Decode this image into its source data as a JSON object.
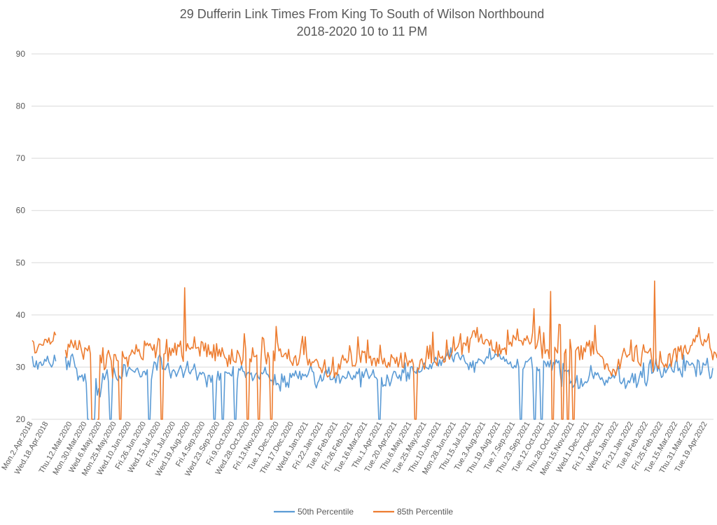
{
  "chart_data": {
    "type": "line",
    "title": "29 Dufferin Link Times From King To South of Wilson Northbound",
    "subtitle": "2018-2020 10 to 11 PM",
    "xlabel": "",
    "ylabel": "",
    "ylim": [
      20,
      90
    ],
    "yticks": [
      "20",
      "30",
      "40",
      "50",
      "60",
      "70",
      "80",
      "90"
    ],
    "grid": true,
    "legend_position": "bottom",
    "x_tick_labels": [
      "Mon.2.Apr.2018",
      "Wed.18.Apr.2018",
      "Thu.12.Mar.2020",
      "Mon.30.Mar.2020",
      "Wed.6.May.2020",
      "Mon.25.May.2020",
      "Wed.10.Jun.2020",
      "Fri.26.Jun.2020",
      "Wed.15.Jul.2020",
      "Fri.31.Jul.2020",
      "Wed.19.Aug.2020",
      "Fri.4.Sep.2020",
      "Wed.23.Sep.2020",
      "Fri.9.Oct.2020",
      "Wed.28.Oct.2020",
      "Fri.13.Nov.2020",
      "Tue.1.Dec.2020",
      "Thu.17.Dec.2020",
      "Wed.6.Jan.2021",
      "Fri.22.Jan.2021",
      "Tue.9.Feb.2021",
      "Fri.26.Feb.2021",
      "Tue.16.Mar.2021",
      "Thu.1.Apr.2021",
      "Tue.20.Apr.2021",
      "Thu.6.May.2021",
      "Tue.25.May.2021",
      "Thu.10.Jun.2021",
      "Mon.28.Jun.2021",
      "Thu.15.Jul.2021",
      "Tue.3.Aug.2021",
      "Thu.19.Aug.2021",
      "Tue.7.Sep.2021",
      "Thu.23.Sep.2021",
      "Tue.12.Oct.2021",
      "Thu.28.Oct.2021",
      "Mon.15.Nov.2021",
      "Wed.1.Dec.2021",
      "Fri.17.Dec.2021",
      "Wed.5.Jan.2022",
      "Fri.21.Jan.2022",
      "Tue.8.Feb.2022",
      "Fri.25.Feb.2022",
      "Tue.15.Mar.2022",
      "Thu.31.Mar.2022",
      "Tue.19.Apr.2022"
    ],
    "series": [
      {
        "name": "50th Percentile",
        "color": "#5b9bd5",
        "values": [
          32.1,
          30.2,
          30.0,
          31.2,
          29.6,
          30.8,
          31.0,
          30.3,
          30.5,
          31.5,
          31.1,
          32.1,
          31.0,
          30.5,
          30.0,
          30.6,
          32.3,
          31.1,
          null,
          null,
          null,
          null,
          null,
          null,
          32.0,
          29.5,
          31.2,
          30.0,
          32.1,
          32.5,
          31.4,
          30.0,
          29.7,
          27.5,
          28.3,
          28.1,
          28.5,
          27.3,
          28.7,
          26.8,
          20.0,
          20.0,
          null,
          null,
          20.0,
          20.0,
          27.8,
          24.6,
          25.9,
          24.3,
          26.3,
          28.8,
          27.6,
          28.4,
          29.5,
          27.2,
          20.0,
          20.0,
          28.0,
          29.8,
          28.5,
          27.7,
          27.4,
          28.3,
          27.8,
          28.2,
          30.5,
          30.4,
          28.2,
          29.3,
          30.0,
          29.6,
          29.4,
          29.2,
          29.0,
          29.6,
          29.8,
          28.9,
          28.1,
          28.2,
          29.1,
          29.2,
          28.5,
          29.5,
          20.0,
          20.0,
          27.6,
          29.4,
          31.0,
          30.8,
          29.4,
          31.8,
          32.4,
          31.7,
          29.6,
          29.7,
          29.5,
          30.2,
          30.8,
          29.2,
          27.9,
          29.2,
          29.5,
          29.1,
          28.2,
          28.9,
          29.6,
          30.3,
          29.5,
          28.0,
          29.0,
          29.8,
          31.1,
          29.1,
          28.7,
          29.4,
          29.6,
          30.6,
          29.3,
          27.5,
          28.3,
          29.0,
          28.6,
          29.0,
          28.8,
          27.8,
          26.2,
          28.4,
          28.4,
          27.1,
          28.4,
          20.0,
          20.0,
          27.3,
          29.2,
          27.5,
          28.8,
          20.0,
          20.0,
          29.1,
          29.0,
          28.8,
          28.9,
          28.5,
          28.3,
          30.1,
          20.0,
          20.0,
          27.5,
          29.7,
          29.4,
          30.3,
          29.2,
          29.1,
          28.0,
          28.8,
          29.0,
          28.6,
          28.9,
          27.4,
          27.9,
          28.6,
          28.9,
          28.1,
          27.7,
          29.0,
          28.7,
          29.0,
          30.0,
          28.7,
          28.6,
          28.0,
          27.4,
          27.5,
          26.6,
          28.6,
          26.6,
          26.9,
          26.6,
          25.4,
          28.7,
          27.1,
          28.3,
          26.2,
          27.1,
          26.1,
          28.8,
          28.0,
          28.8,
          28.3,
          29.3,
          28.4,
          27.8,
          29.2,
          27.6,
          28.7,
          28.3,
          28.6,
          28.1,
          28.6,
          29.5,
          30.4,
          29.2,
          29.0,
          26.8,
          26.0,
          27.0,
          27.5,
          28.5,
          27.3,
          27.6,
          29.0,
          29.5,
          28.8,
          30.0,
          27.6,
          27.6,
          27.7,
          28.5,
          27.0,
          28.4,
          28.6,
          26.9,
          27.7,
          28.3,
          28.1,
          27.8,
          28.0,
          29.2,
          28.6,
          27.9,
          27.6,
          28.4,
          27.9,
          29.1,
          28.7,
          29.7,
          26.2,
          29.1,
          28.0,
          29.0,
          29.7,
          28.7,
          27.8,
          28.3,
          28.6,
          29.5,
          28.1,
          28.0,
          27.6,
          20.0,
          20.0,
          28.0,
          26.3,
          26.6,
          26.4,
          28.5,
          27.6,
          26.4,
          27.3,
          28.5,
          29.2,
          29.1,
          28.2,
          27.8,
          28.5,
          27.4,
          29.5,
          28.9,
          30.8,
          27.3,
          29.0,
          27.7,
          30.0,
          30.1,
          29.2,
          29.1,
          28.8,
          29.9,
          29.0,
          29.1,
          29.3,
          30.3,
          30.8,
          29.9,
          29.8,
          29.6,
          30.5,
          29.7,
          30.7,
          31.0,
          31.9,
          31.4,
          30.2,
          31.4,
          30.3,
          31.3,
          31.3,
          32.0,
          32.2,
          33.3,
          31.5,
          33.7,
          31.7,
          31.0,
          32.3,
          32.6,
          32.8,
          31.9,
          31.4,
          32.1,
          32.3,
          31.2,
          30.7,
          30.6,
          29.5,
          30.9,
          29.9,
          31.2,
          29.0,
          30.9,
          30.8,
          31.6,
          31.4,
          31.3,
          31.0,
          30.6,
          31.5,
          32.0,
          31.7,
          33.6,
          31.4,
          31.7,
          31.8,
          32.5,
          32.4,
          32.0,
          32.5,
          31.6,
          31.5,
          32.0,
          31.1,
          31.5,
          30.7,
          30.6,
          31.0,
          30.0,
          29.8,
          30.3,
          29.9,
          31.5,
          30.0,
          20.0,
          20.0,
          29.6,
          30.0,
          31.1,
          31.0,
          31.3,
          31.6,
          31.9,
          29.5,
          20.0,
          20.0,
          30.0,
          29.3,
          29.6,
          20.0,
          20.0,
          31.2,
          30.9,
          30.1,
          31.1,
          30.0,
          31.3,
          29.4,
          30.9,
          30.5,
          31.4,
          30.8,
          31.2,
          28.6,
          26.3,
          30.7,
          29.2,
          29.4,
          29.2,
          29.4,
          26.9,
          27.3,
          26.1,
          26.5,
          27.0,
          28.4,
          25.9,
          26.0,
          27.8,
          26.3,
          26.8,
          27.2,
          27.0,
          27.4,
          28.5,
          30.3,
          28.7,
          27.8,
          29.0,
          28.5,
          28.9,
          28.2,
          27.6,
          28.0,
          27.3,
          26.5,
          27.5,
          27.0,
          28.1,
          27.8,
          28.0,
          28.5,
          27.9,
          28.7,
          29.5,
          30.1,
          27.2,
          26.8,
          27.2,
          27.9,
          25.9,
          26.6,
          27.4,
          27.0,
          27.9,
          28.8,
          27.0,
          28.7,
          26.1,
          26.9,
          28.1,
          29.2,
          28.0,
          30.8,
          27.1,
          26.4,
          27.6,
          30.5,
          31.4,
          28.8,
          29.0,
          29.7,
          31.7,
          29.2,
          30.3,
          29.1,
          28.0,
          28.3,
          30.0,
          28.9,
          29.5,
          29.9,
          30.6,
          29.9,
          29.2,
          29.0,
          30.9,
          31.6,
          29.3,
          29.8,
          28.8,
          28.1,
          32.3,
          29.3,
          31.2,
          31.0,
          30.4,
          30.4,
          30.8,
          30.5,
          29.8,
          28.2,
          31.4,
          31.1,
          28.5,
          29.0,
          30.8,
          30.4,
          30.4,
          31.7,
          29.5,
          27.8,
          28.1,
          29.8
        ]
      },
      {
        "name": "85th Percentile",
        "color": "#ed7d31",
        "values": [
          35.1,
          34.8,
          32.7,
          32.8,
          33.7,
          34.4,
          34.4,
          34.2,
          34.2,
          35.3,
          35.3,
          34.7,
          35.6,
          34.4,
          34.8,
          35.0,
          36.7,
          36.1,
          null,
          null,
          null,
          null,
          null,
          null,
          33.3,
          31.8,
          34.4,
          33.8,
          35.2,
          34.4,
          33.7,
          35.1,
          33.4,
          33.4,
          35.1,
          33.9,
          32.7,
          31.5,
          33.7,
          33.5,
          33.1,
          34.1,
          32.5,
          20.0,
          20.0,
          null,
          null,
          20.0,
          20.0,
          32.3,
          30.8,
          33.7,
          29.5,
          29.9,
          32.3,
          33.2,
          32.2,
          31.2,
          27.9,
          32.4,
          32.4,
          31.3,
          31.2,
          20.0,
          20.0,
          33.0,
          32.0,
          31.6,
          31.9,
          30.1,
          32.1,
          32.4,
          33.3,
          32.8,
          32.5,
          34.3,
          33.0,
          33.4,
          32.2,
          31.6,
          31.4,
          35.0,
          34.1,
          34.6,
          34.1,
          34.5,
          33.7,
          33.2,
          34.3,
          31.8,
          33.7,
          35.5,
          35.2,
          20.0,
          20.0,
          32.5,
          32.6,
          35.3,
          31.1,
          33.7,
          32.2,
          33.6,
          32.8,
          34.6,
          32.3,
          34.3,
          33.9,
          35.0,
          32.2,
          31.1,
          45.2,
          33.1,
          34.5,
          33.7,
          33.4,
          33.8,
          33.6,
          35.8,
          33.6,
          33.7,
          33.8,
          32.1,
          34.9,
          34.7,
          33.1,
          34.6,
          32.0,
          34.3,
          32.4,
          33.0,
          31.8,
          34.3,
          31.2,
          34.5,
          32.1,
          33.4,
          32.0,
          33.7,
          32.6,
          31.8,
          31.6,
          30.1,
          32.3,
          30.6,
          33.4,
          31.3,
          31.0,
          30.9,
          33.2,
          32.6,
          31.8,
          30.4,
          31.4,
          36.4,
          33.5,
          20.0,
          20.0,
          31.6,
          31.0,
          33.7,
          32.0,
          32.0,
          32.3,
          20.0,
          20.0,
          31.1,
          35.7,
          35.4,
          32.3,
          30.6,
          32.8,
          31.7,
          20.0,
          20.0,
          33.1,
          31.2,
          37.8,
          34.7,
          33.1,
          33.5,
          32.0,
          32.0,
          32.5,
          32.7,
          31.6,
          33.4,
          31.3,
          30.9,
          30.3,
          31.8,
          32.2,
          30.3,
          30.6,
          32.0,
          34.1,
          35.9,
          32.4,
          35.8,
          32.0,
          30.4,
          31.5,
          30.2,
          31.0,
          30.9,
          31.3,
          31.5,
          31.0,
          29.9,
          29.8,
          28.9,
          30.0,
          31.4,
          28.8,
          28.1,
          28.3,
          28.6,
          29.4,
          31.9,
          28.0,
          29.0,
          28.5,
          30.6,
          29.6,
          31.4,
          32.3,
          31.3,
          31.6,
          30.8,
          31.3,
          34.1,
          32.7,
          30.2,
          30.3,
          30.2,
          31.1,
          35.8,
          32.6,
          30.9,
          33.1,
          32.8,
          33.0,
          30.8,
          35.2,
          31.7,
          32.1,
          30.3,
          31.6,
          31.7,
          30.2,
          31.7,
          30.7,
          34.2,
          31.7,
          30.6,
          31.7,
          30.3,
          29.9,
          30.9,
          30.1,
          32.4,
          31.8,
          31.7,
          30.7,
          31.9,
          30.0,
          31.1,
          32.7,
          30.0,
          29.9,
          32.8,
          31.5,
          30.2,
          31.2,
          30.9,
          31.5,
          30.5,
          20.0,
          20.0,
          29.8,
          29.6,
          31.3,
          31.6,
          30.5,
          29.6,
          31.5,
          34.0,
          31.6,
          34.2,
          30.8,
          36.7,
          31.1,
          30.9,
          30.3,
          33.1,
          31.9,
          31.7,
          32.1,
          30.9,
          31.1,
          35.2,
          32.3,
          31.5,
          32.2,
          32.9,
          35.8,
          33.1,
          33.6,
          33.9,
          34.7,
          36.4,
          32.4,
          34.6,
          34.6,
          34.1,
          35.8,
          32.8,
          35.4,
          35.8,
          36.9,
          37.0,
          35.7,
          37.6,
          34.8,
          35.6,
          36.3,
          34.6,
          34.4,
          35.2,
          35.3,
          35.0,
          34.1,
          35.2,
          33.2,
          33.3,
          32.7,
          34.8,
          32.0,
          34.3,
          32.5,
          33.5,
          33.4,
          33.7,
          32.4,
          37.1,
          34.3,
          34.8,
          34.0,
          36.1,
          35.6,
          35.2,
          37.3,
          35.1,
          35.1,
          35.0,
          34.2,
          35.5,
          35.1,
          36.0,
          35.1,
          34.4,
          34.8,
          36.6,
          41.2,
          33.5,
          34.0,
          35.3,
          37.8,
          34.6,
          31.7,
          36.6,
          32.6,
          33.3,
          33.3,
          31.6,
          44.5,
          20.0,
          20.0,
          33.8,
          33.2,
          32.7,
          38.2,
          38.1,
          20.0,
          20.0,
          32.6,
          33.4,
          20.0,
          20.0,
          35.3,
          33.1,
          20.0,
          20.0,
          33.1,
          33.6,
          33.9,
          31.4,
          34.1,
          31.5,
          33.7,
          32.9,
          34.8,
          34.0,
          35.1,
          32.2,
          34.9,
          32.5,
          38.0,
          33.4,
          32.6,
          32.5,
          32.1,
          32.0,
          31.5,
          29.6,
          30.6,
          30.6,
          29.4,
          29.1,
          28.3,
          29.6,
          29.4,
          28.4,
          29.7,
          31.5,
          29.7,
          31.4,
          32.6,
          33.6,
          32.6,
          31.9,
          32.3,
          32.4,
          35.2,
          31.3,
          31.1,
          33.8,
          34.2,
          31.1,
          30.6,
          30.2,
          32.7,
          34.3,
          32.9,
          32.9,
          32.7,
          33.1,
          33.6,
          31.3,
          29.1,
          46.5,
          30.8,
          30.1,
          29.7,
          33.0,
          31.0,
          30.6,
          30.0,
          30.6,
          29.9,
          32.4,
          32.6,
          30.1,
          31.9,
          33.3,
          33.6,
          31.1,
          33.9,
          33.0,
          34.1,
          31.5,
          33.5,
          34.2,
          32.9,
          32.5,
          33.0,
          34.1,
          34.2,
          35.4,
          34.8,
          36.1,
          35.8,
          37.6,
          35.5,
          34.4,
          34.1,
          35.3,
          34.8,
          35.2,
          36.4,
          33.7,
          33.0,
          31.4,
          32.9,
          32.7,
          31.8,
          33.7,
          32.8,
          34.3,
          34.9,
          32.6,
          32.1,
          37.6,
          37.3
        ]
      }
    ]
  }
}
